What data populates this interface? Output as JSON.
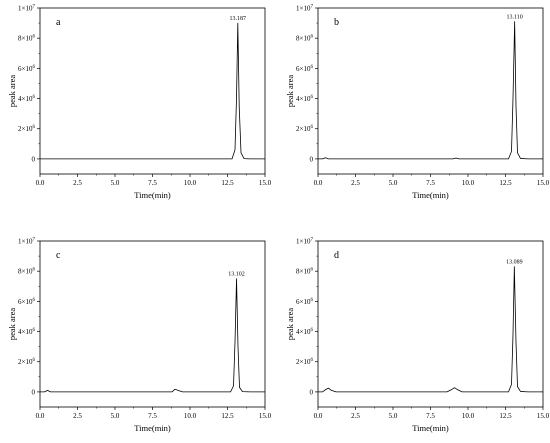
{
  "chart_data": [
    {
      "type": "line",
      "panel_label": "a",
      "xlabel": "Time(min)",
      "ylabel": "peak area",
      "xlim": [
        0,
        15
      ],
      "ylim": [
        -1000000,
        10000000
      ],
      "x_ticks": [
        "0.0",
        "2.5",
        "5.0",
        "7.5",
        "10.0",
        "12.5",
        "15.0"
      ],
      "y_ticks": [
        {
          "value": 0,
          "base": "0",
          "exp": ""
        },
        {
          "value": 2000000,
          "base": "2×10",
          "exp": "6"
        },
        {
          "value": 4000000,
          "base": "4×10",
          "exp": "6"
        },
        {
          "value": 6000000,
          "base": "6×10",
          "exp": "6"
        },
        {
          "value": 8000000,
          "base": "8×10",
          "exp": "6"
        },
        {
          "value": 10000000,
          "base": "1×10",
          "exp": "7"
        }
      ],
      "peak_annotation": {
        "text": "13.187",
        "x": 13.187,
        "y": 9000000
      },
      "series": [
        {
          "x": [
            0,
            0.5,
            1,
            2,
            4,
            6,
            8,
            9,
            10,
            11,
            12,
            12.8,
            13.0,
            13.1,
            13.187,
            13.28,
            13.4,
            13.6,
            14,
            15
          ],
          "y": [
            0,
            0,
            0,
            0,
            0,
            0,
            0,
            0,
            0,
            0,
            0,
            0,
            600000,
            4000000,
            9000000,
            3500000,
            400000,
            20000,
            0,
            0
          ]
        }
      ]
    },
    {
      "type": "line",
      "panel_label": "b",
      "xlabel": "Time(min)",
      "ylabel": "peak area",
      "xlim": [
        0,
        15
      ],
      "ylim": [
        -1000000,
        10000000
      ],
      "x_ticks": [
        "0.0",
        "2.5",
        "5.0",
        "7.5",
        "10.0",
        "12.5",
        "15.0"
      ],
      "y_ticks": [
        {
          "value": 0,
          "base": "0",
          "exp": ""
        },
        {
          "value": 2000000,
          "base": "2×10",
          "exp": "6"
        },
        {
          "value": 4000000,
          "base": "4×10",
          "exp": "6"
        },
        {
          "value": 6000000,
          "base": "6×10",
          "exp": "6"
        },
        {
          "value": 8000000,
          "base": "8×10",
          "exp": "6"
        },
        {
          "value": 10000000,
          "base": "1×10",
          "exp": "7"
        }
      ],
      "peak_annotation": {
        "text": "13.110",
        "x": 13.11,
        "y": 9100000
      },
      "series": [
        {
          "x": [
            0,
            0.3,
            0.5,
            0.7,
            1,
            2,
            4,
            6,
            8,
            9,
            9.2,
            9.4,
            10,
            11,
            12,
            12.7,
            12.9,
            13.0,
            13.11,
            13.2,
            13.3,
            13.5,
            14,
            15
          ],
          "y": [
            0,
            0,
            80000,
            0,
            0,
            0,
            0,
            0,
            0,
            0,
            60000,
            0,
            0,
            0,
            0,
            0,
            500000,
            4000000,
            9100000,
            3500000,
            400000,
            30000,
            0,
            0
          ]
        }
      ]
    },
    {
      "type": "line",
      "panel_label": "c",
      "xlabel": "Time(min)",
      "ylabel": "peak area",
      "xlim": [
        0,
        15
      ],
      "ylim": [
        -1000000,
        10000000
      ],
      "x_ticks": [
        "0.0",
        "2.5",
        "5.0",
        "7.5",
        "10.0",
        "12.5",
        "15.0"
      ],
      "y_ticks": [
        {
          "value": 0,
          "base": "0",
          "exp": ""
        },
        {
          "value": 2000000,
          "base": "2×10",
          "exp": "6"
        },
        {
          "value": 4000000,
          "base": "4×10",
          "exp": "6"
        },
        {
          "value": 6000000,
          "base": "6×10",
          "exp": "6"
        },
        {
          "value": 8000000,
          "base": "8×10",
          "exp": "6"
        },
        {
          "value": 10000000,
          "base": "1×10",
          "exp": "7"
        }
      ],
      "peak_annotation": {
        "text": "13.102",
        "x": 13.102,
        "y": 7500000
      },
      "series": [
        {
          "x": [
            0,
            0.3,
            0.5,
            0.7,
            1,
            2,
            4,
            6,
            8,
            8.8,
            9.0,
            9.2,
            9.5,
            10,
            11,
            12,
            12.7,
            12.9,
            13.0,
            13.102,
            13.2,
            13.3,
            13.5,
            14,
            15
          ],
          "y": [
            0,
            0,
            100000,
            0,
            0,
            0,
            0,
            0,
            0,
            0,
            180000,
            100000,
            0,
            0,
            0,
            0,
            0,
            400000,
            3300000,
            7500000,
            3000000,
            300000,
            20000,
            0,
            0
          ]
        }
      ]
    },
    {
      "type": "line",
      "panel_label": "d",
      "xlabel": "Time(min)",
      "ylabel": "peak area",
      "xlim": [
        0,
        15
      ],
      "ylim": [
        -1000000,
        10000000
      ],
      "x_ticks": [
        "0.0",
        "2.5",
        "5.0",
        "7.5",
        "10.0",
        "12.5",
        "15.0"
      ],
      "y_ticks": [
        {
          "value": 0,
          "base": "0",
          "exp": ""
        },
        {
          "value": 2000000,
          "base": "2×10",
          "exp": "6"
        },
        {
          "value": 4000000,
          "base": "4×10",
          "exp": "6"
        },
        {
          "value": 6000000,
          "base": "6×10",
          "exp": "6"
        },
        {
          "value": 8000000,
          "base": "8×10",
          "exp": "6"
        },
        {
          "value": 10000000,
          "base": "1×10",
          "exp": "7"
        }
      ],
      "peak_annotation": {
        "text": "13.089",
        "x": 13.089,
        "y": 8300000
      },
      "series": [
        {
          "x": [
            0,
            0.3,
            0.5,
            0.7,
            0.9,
            1.2,
            2,
            4,
            6,
            8,
            8.6,
            8.9,
            9.1,
            9.3,
            9.6,
            10,
            11,
            12,
            12.7,
            12.9,
            13.0,
            13.089,
            13.2,
            13.3,
            13.5,
            14,
            15
          ],
          "y": [
            0,
            0,
            150000,
            250000,
            100000,
            0,
            0,
            0,
            0,
            0,
            0,
            150000,
            280000,
            150000,
            0,
            0,
            0,
            0,
            0,
            500000,
            3800000,
            8300000,
            3300000,
            350000,
            30000,
            0,
            0
          ]
        }
      ]
    }
  ]
}
